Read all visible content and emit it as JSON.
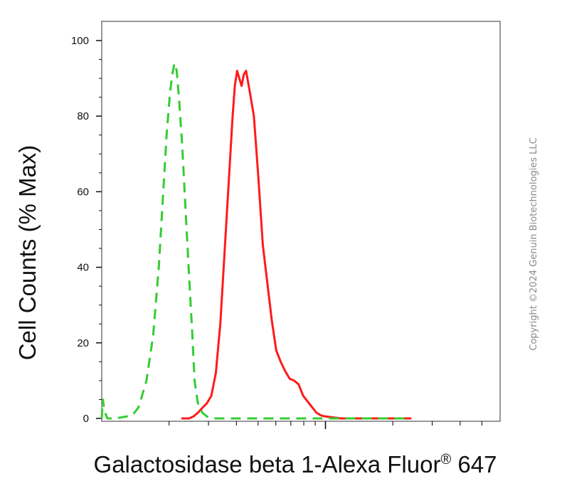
{
  "chart_data": {
    "type": "line",
    "title": "",
    "xlabel": "Galactosidase beta 1-Alexa Fluor",
    "xlabel_superscript": "®",
    "xlabel_suffix": " 647",
    "ylabel": "Cell Counts (% Max)",
    "ylim": [
      0,
      100
    ],
    "yticks": [
      "0",
      "20",
      "40",
      "60",
      "80",
      "100"
    ],
    "xlim": [
      0,
      1
    ],
    "x_scale": "log",
    "grid": false,
    "legend": "none",
    "series": [
      {
        "color": "#ff1a1a",
        "style": "solid",
        "points": [
          [
            0.36,
            0
          ],
          [
            0.39,
            0
          ],
          [
            0.41,
            0.5
          ],
          [
            0.43,
            1.5
          ],
          [
            0.45,
            2.8
          ],
          [
            0.47,
            4
          ],
          [
            0.49,
            6
          ],
          [
            0.51,
            12
          ],
          [
            0.53,
            25
          ],
          [
            0.55,
            45
          ],
          [
            0.57,
            65
          ],
          [
            0.585,
            80
          ],
          [
            0.595,
            88
          ],
          [
            0.605,
            92
          ],
          [
            0.615,
            90
          ],
          [
            0.625,
            88
          ],
          [
            0.635,
            91
          ],
          [
            0.645,
            92
          ],
          [
            0.66,
            87
          ],
          [
            0.68,
            80
          ],
          [
            0.7,
            64
          ],
          [
            0.72,
            46
          ],
          [
            0.74,
            36
          ],
          [
            0.76,
            26
          ],
          [
            0.78,
            18
          ],
          [
            0.8,
            15
          ],
          [
            0.82,
            12.5
          ],
          [
            0.84,
            10.5
          ],
          [
            0.86,
            10
          ],
          [
            0.88,
            9
          ],
          [
            0.9,
            6
          ],
          [
            0.92,
            4.5
          ],
          [
            0.94,
            3
          ],
          [
            0.96,
            1.5
          ],
          [
            0.98,
            0.8
          ],
          [
            1.0,
            0.5
          ],
          [
            1.03,
            0.3
          ],
          [
            1.07,
            0
          ],
          [
            1.2,
            0
          ],
          [
            1.38,
            0
          ]
        ]
      },
      {
        "color": "#33cc33",
        "style": "dashed",
        "points": [
          [
            0.0,
            0
          ],
          [
            0.005,
            5
          ],
          [
            0.012,
            2
          ],
          [
            0.025,
            0
          ],
          [
            0.06,
            0
          ],
          [
            0.11,
            0.5
          ],
          [
            0.14,
            1
          ],
          [
            0.165,
            3
          ],
          [
            0.2,
            10
          ],
          [
            0.23,
            22
          ],
          [
            0.255,
            40
          ],
          [
            0.275,
            60
          ],
          [
            0.29,
            75
          ],
          [
            0.305,
            86
          ],
          [
            0.315,
            91
          ],
          [
            0.325,
            94
          ],
          [
            0.335,
            92
          ],
          [
            0.345,
            85
          ],
          [
            0.36,
            72
          ],
          [
            0.375,
            55
          ],
          [
            0.39,
            38
          ],
          [
            0.405,
            22
          ],
          [
            0.415,
            10
          ],
          [
            0.43,
            4
          ],
          [
            0.45,
            1.5
          ],
          [
            0.47,
            0.5
          ],
          [
            0.5,
            0
          ],
          [
            0.6,
            0
          ],
          [
            0.7,
            0
          ],
          [
            0.8,
            0
          ],
          [
            1.0,
            0
          ],
          [
            1.2,
            0
          ],
          [
            1.38,
            0
          ]
        ]
      }
    ]
  },
  "watermark": "Copyright ©2024 Genuin Biotechnologies LLC"
}
